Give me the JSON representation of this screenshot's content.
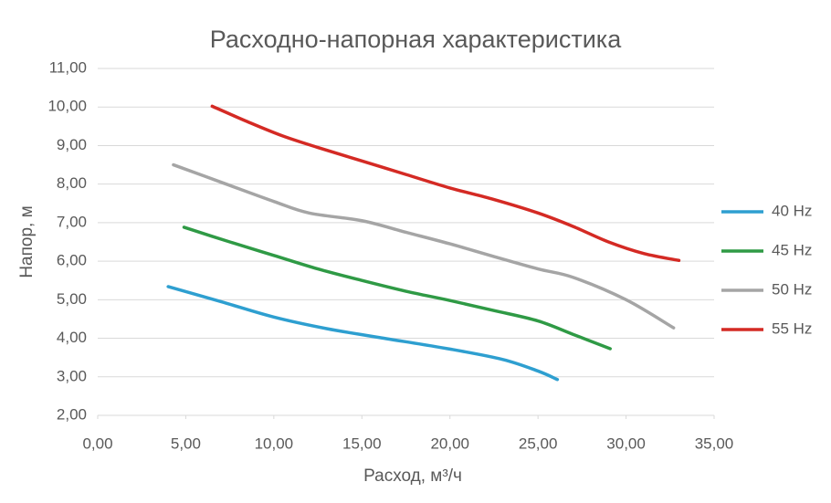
{
  "chart_data": {
    "type": "line",
    "title": "Расходно-напорная характеристика",
    "x_label": "Расход, м³/ч",
    "y_label": "Напор, м",
    "xlim": [
      0,
      35
    ],
    "ylim": [
      2,
      11
    ],
    "xticks": [
      {
        "value": 0,
        "label": "0,00"
      },
      {
        "value": 5,
        "label": "5,00"
      },
      {
        "value": 10,
        "label": "10,00"
      },
      {
        "value": 15,
        "label": "15,00"
      },
      {
        "value": 20,
        "label": "20,00"
      },
      {
        "value": 25,
        "label": "25,00"
      },
      {
        "value": 30,
        "label": "30,00"
      },
      {
        "value": 35,
        "label": "35,00"
      }
    ],
    "yticks": [
      {
        "value": 2,
        "label": "2,00"
      },
      {
        "value": 3,
        "label": "3,00"
      },
      {
        "value": 4,
        "label": "4,00"
      },
      {
        "value": 5,
        "label": "5,00"
      },
      {
        "value": 6,
        "label": "6,00"
      },
      {
        "value": 7,
        "label": "7,00"
      },
      {
        "value": 8,
        "label": "8,00"
      },
      {
        "value": 9,
        "label": "9,00"
      },
      {
        "value": 10,
        "label": "10,00"
      },
      {
        "value": 11,
        "label": "11,00"
      }
    ],
    "grid": true,
    "legend": "right",
    "series": [
      {
        "name": "40 Hz",
        "color": "#2e9fd0",
        "x": [
          4.0,
          7,
          10,
          13,
          16,
          20,
          23,
          25,
          26.1
        ],
        "values": [
          5.34,
          4.95,
          4.55,
          4.25,
          4.02,
          3.72,
          3.45,
          3.15,
          2.93
        ]
      },
      {
        "name": "45 Hz",
        "color": "#2f9a45",
        "x": [
          4.9,
          7.5,
          10,
          12.5,
          15,
          17.5,
          20,
          22.5,
          25,
          27,
          29.1
        ],
        "values": [
          6.88,
          6.5,
          6.15,
          5.8,
          5.5,
          5.22,
          4.98,
          4.72,
          4.45,
          4.1,
          3.73
        ]
      },
      {
        "name": "50 Hz",
        "color": "#a5a5a5",
        "x": [
          4.3,
          7,
          10,
          12,
          15,
          17.5,
          20,
          22.5,
          25,
          27,
          30,
          32.7
        ],
        "values": [
          8.5,
          8.05,
          7.55,
          7.25,
          7.05,
          6.75,
          6.45,
          6.12,
          5.8,
          5.58,
          5.0,
          4.27
        ]
      },
      {
        "name": "55 Hz",
        "color": "#d42a24",
        "x": [
          6.5,
          8.5,
          10.5,
          12.5,
          15,
          17.5,
          20,
          22.5,
          25,
          27,
          29,
          31,
          33
        ],
        "values": [
          10.02,
          9.62,
          9.25,
          8.95,
          8.6,
          8.25,
          7.9,
          7.6,
          7.25,
          6.9,
          6.5,
          6.2,
          6.02
        ]
      }
    ]
  }
}
